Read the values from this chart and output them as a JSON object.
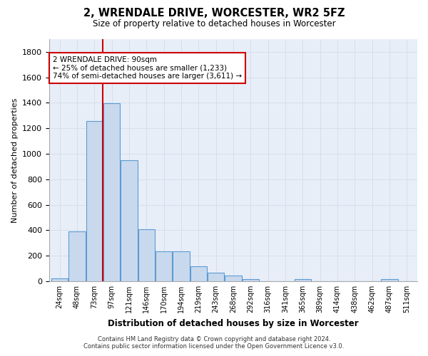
{
  "title": "2, WRENDALE DRIVE, WORCESTER, WR2 5FZ",
  "subtitle": "Size of property relative to detached houses in Worcester",
  "xlabel": "Distribution of detached houses by size in Worcester",
  "ylabel": "Number of detached properties",
  "footer_line1": "Contains HM Land Registry data © Crown copyright and database right 2024.",
  "footer_line2": "Contains public sector information licensed under the Open Government Licence v3.0.",
  "bar_labels": [
    "24sqm",
    "48sqm",
    "73sqm",
    "97sqm",
    "121sqm",
    "146sqm",
    "170sqm",
    "194sqm",
    "219sqm",
    "243sqm",
    "268sqm",
    "292sqm",
    "316sqm",
    "341sqm",
    "365sqm",
    "389sqm",
    "414sqm",
    "438sqm",
    "462sqm",
    "487sqm",
    "511sqm"
  ],
  "bar_values": [
    25,
    390,
    1260,
    1395,
    950,
    410,
    235,
    235,
    115,
    65,
    42,
    18,
    0,
    0,
    18,
    0,
    0,
    0,
    0,
    18,
    0
  ],
  "bar_color": "#c9d9ed",
  "bar_edge_color": "#5b9bd5",
  "grid_color": "#d0d8e8",
  "vline_color": "#cc0000",
  "annotation_text": "2 WRENDALE DRIVE: 90sqm\n← 25% of detached houses are smaller (1,233)\n74% of semi-detached houses are larger (3,611) →",
  "annotation_box_color": "#cc0000",
  "ylim": [
    0,
    1900
  ],
  "yticks": [
    0,
    200,
    400,
    600,
    800,
    1000,
    1200,
    1400,
    1600,
    1800
  ]
}
